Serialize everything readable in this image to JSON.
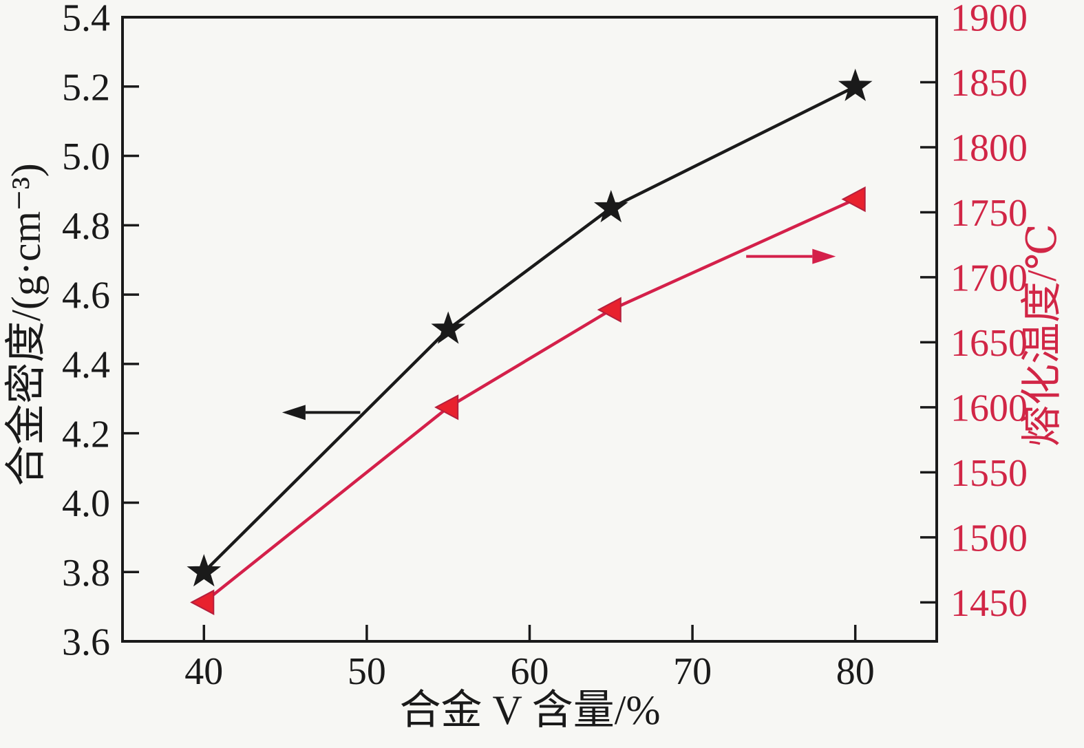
{
  "figure": {
    "background": "#f7f7f4",
    "frame_color": "#1a1a1a"
  },
  "chart_data": {
    "type": "line",
    "title": "",
    "xlabel": "合金 V 含量/%",
    "x": [
      40,
      55,
      65,
      80
    ],
    "xlim": [
      35,
      85
    ],
    "xticks": [
      "40",
      "50",
      "60",
      "70",
      "80"
    ],
    "grid": false,
    "legend": false,
    "left_axis": {
      "label": "合金密度/(g·cm⁻³)",
      "lim": [
        3.6,
        5.4
      ],
      "ticks": [
        "3.6",
        "3.8",
        "4.0",
        "4.2",
        "4.4",
        "4.6",
        "4.8",
        "5.0",
        "5.2",
        "5.4"
      ],
      "color": "#1a1a1a"
    },
    "right_axis": {
      "label": "熔化温度/℃",
      "lim": [
        1420,
        1900
      ],
      "ticks": [
        "1450",
        "1500",
        "1550",
        "1600",
        "1650",
        "1700",
        "1750",
        "1800",
        "1850",
        "1900"
      ],
      "color": "#d12646"
    },
    "series": [
      {
        "name": "alloy-density",
        "axis": "left",
        "marker": "star",
        "line_color": "#1a1a1a",
        "marker_fill": "#1a1a1a",
        "marker_stroke": "#1a1a1a",
        "values": [
          3.8,
          4.5,
          4.85,
          5.2
        ]
      },
      {
        "name": "melting-temperature",
        "axis": "right",
        "marker": "triangle-left",
        "line_color": "#d4204a",
        "marker_fill": "#e8212e",
        "marker_stroke": "#b51f3c",
        "values": [
          1450,
          1600,
          1675,
          1760
        ]
      }
    ],
    "annotations": [
      {
        "name": "density-axis-arrow",
        "axis": "left",
        "color": "#1a1a1a",
        "from": [
          49.6,
          4.26
        ],
        "to": [
          44.8,
          4.26
        ]
      },
      {
        "name": "temperature-axis-arrow",
        "axis": "right",
        "color": "#d4204a",
        "from": [
          73.3,
          1716
        ],
        "to": [
          78.8,
          1716
        ]
      }
    ]
  }
}
